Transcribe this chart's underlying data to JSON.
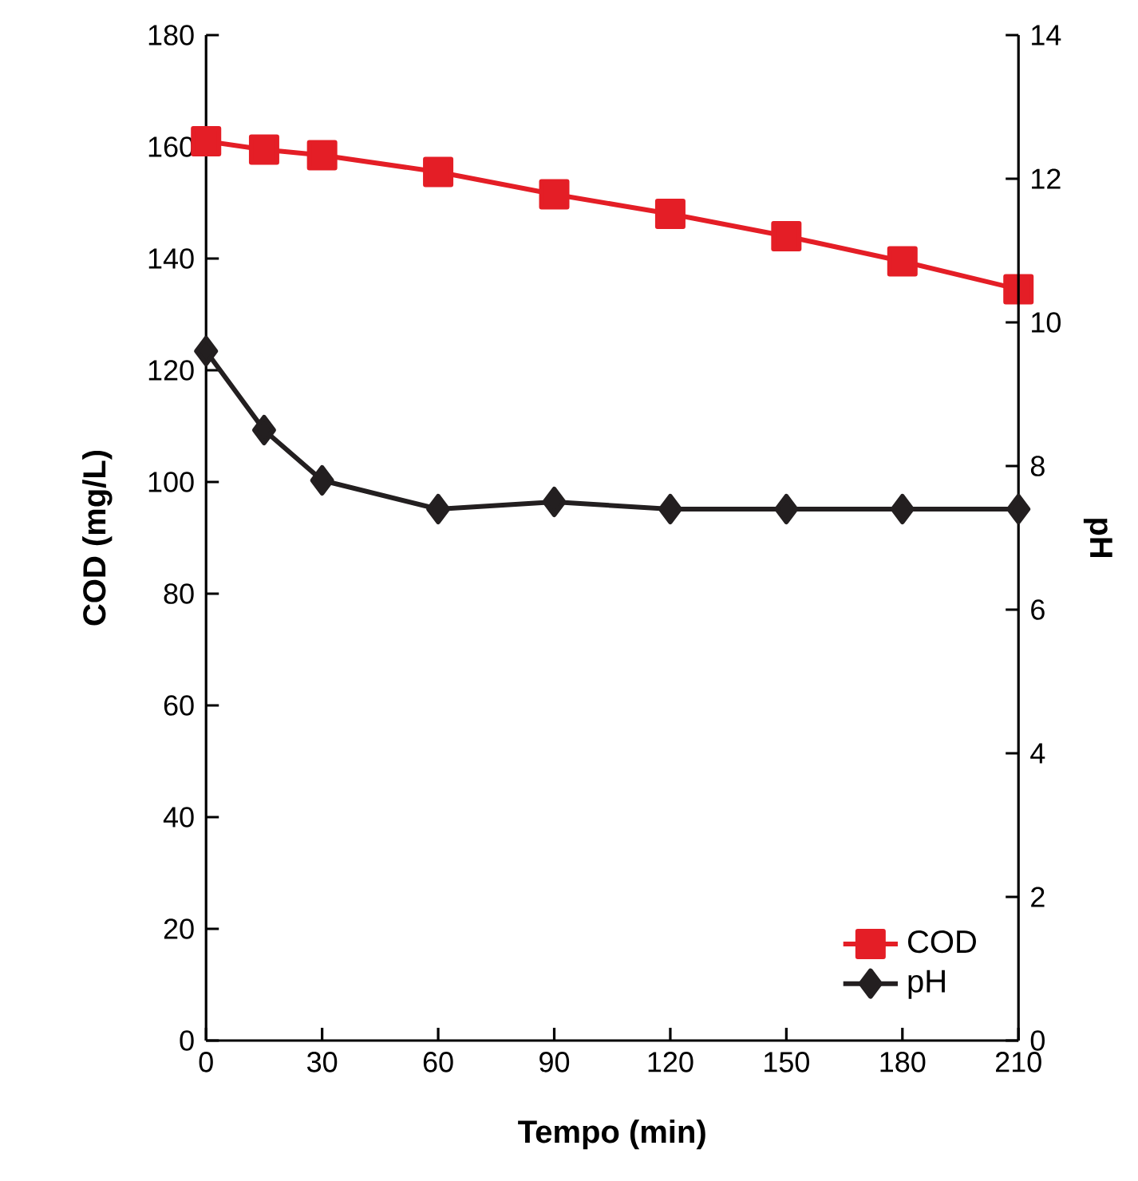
{
  "chart_data": {
    "type": "line",
    "xlabel": "Tempo (min)",
    "ylabel": "COD (mg/L)",
    "y2label": "pH",
    "x": [
      0,
      15,
      30,
      60,
      90,
      120,
      150,
      180,
      210
    ],
    "xlim": [
      0,
      210
    ],
    "xticks": [
      0,
      30,
      60,
      90,
      120,
      150,
      180,
      210
    ],
    "ylim": [
      0,
      180
    ],
    "yticks": [
      0,
      20,
      40,
      60,
      80,
      100,
      120,
      140,
      160,
      180
    ],
    "y2lim": [
      0,
      14
    ],
    "y2ticks": [
      0,
      2,
      4,
      6,
      8,
      10,
      12,
      14
    ],
    "legend": "bottom right",
    "grid": false,
    "line_style": "solid",
    "series": [
      {
        "name": "COD",
        "color": "#e41e26",
        "marker": "square",
        "values": [
          161,
          159.5,
          158.5,
          155.5,
          151.5,
          148,
          144,
          139.5,
          134.5
        ]
      },
      {
        "name": "pH",
        "color": "#231f20",
        "marker": "diamond",
        "axis": "y2",
        "values": [
          9.6,
          8.5,
          7.8,
          7.4,
          7.5,
          7.4,
          7.4,
          7.4,
          7.4
        ]
      }
    ]
  }
}
